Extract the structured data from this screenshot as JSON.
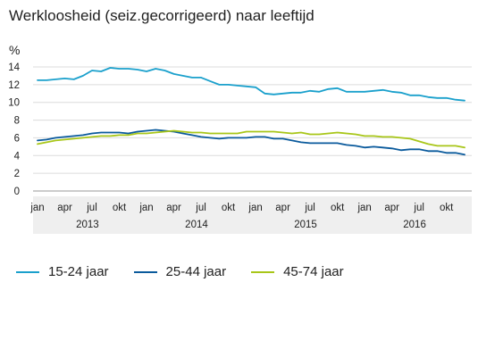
{
  "title": "Werkloosheid (seiz.gecorrigeerd) naar leeftijd",
  "chart_data": {
    "type": "line",
    "title": "Werkloosheid (seiz.gecorrigeerd) naar leeftijd",
    "ylabel": "%",
    "ylim": [
      0,
      14
    ],
    "yticks": [
      0,
      2,
      4,
      6,
      8,
      10,
      12,
      14
    ],
    "grid": true,
    "legend_position": "bottom",
    "x_tick_labels": [
      "jan",
      "apr",
      "jul",
      "okt",
      "jan",
      "apr",
      "jul",
      "okt",
      "jan",
      "apr",
      "jul",
      "okt",
      "jan",
      "apr",
      "jul",
      "okt"
    ],
    "x_tick_positions": [
      0,
      3,
      6,
      9,
      12,
      15,
      18,
      21,
      24,
      27,
      30,
      33,
      36,
      39,
      42,
      45
    ],
    "years": [
      {
        "label": "2013",
        "center": 5.5
      },
      {
        "label": "2014",
        "center": 17.5
      },
      {
        "label": "2015",
        "center": 29.5
      },
      {
        "label": "2016",
        "center": 41.5
      }
    ],
    "series": [
      {
        "name": "15-24 jaar",
        "color": "#1aa0cc",
        "values": [
          12.5,
          12.5,
          12.6,
          12.7,
          12.6,
          13.0,
          13.6,
          13.5,
          13.9,
          13.8,
          13.8,
          13.7,
          13.5,
          13.8,
          13.6,
          13.2,
          13.0,
          12.8,
          12.8,
          12.4,
          12.0,
          12.0,
          11.9,
          11.8,
          11.7,
          11.0,
          10.9,
          11.0,
          11.1,
          11.1,
          11.3,
          11.2,
          11.5,
          11.6,
          11.2,
          11.2,
          11.2,
          11.3,
          11.4,
          11.2,
          11.1,
          10.8,
          10.8,
          10.6,
          10.5,
          10.5,
          10.3,
          10.2
        ]
      },
      {
        "name": "25-44 jaar",
        "color": "#0a5a9c",
        "values": [
          5.7,
          5.8,
          6.0,
          6.1,
          6.2,
          6.3,
          6.5,
          6.6,
          6.6,
          6.6,
          6.5,
          6.7,
          6.8,
          6.9,
          6.8,
          6.7,
          6.5,
          6.3,
          6.1,
          6.0,
          5.9,
          6.0,
          6.0,
          6.0,
          6.1,
          6.1,
          5.9,
          5.9,
          5.7,
          5.5,
          5.4,
          5.4,
          5.4,
          5.4,
          5.2,
          5.1,
          4.9,
          5.0,
          4.9,
          4.8,
          4.6,
          4.7,
          4.7,
          4.5,
          4.5,
          4.3,
          4.3,
          4.1
        ]
      },
      {
        "name": "45-74 jaar",
        "color": "#a8c618",
        "values": [
          5.3,
          5.5,
          5.7,
          5.8,
          5.9,
          6.0,
          6.1,
          6.2,
          6.2,
          6.3,
          6.3,
          6.5,
          6.5,
          6.6,
          6.7,
          6.8,
          6.7,
          6.6,
          6.6,
          6.5,
          6.5,
          6.5,
          6.5,
          6.7,
          6.7,
          6.7,
          6.7,
          6.6,
          6.5,
          6.6,
          6.4,
          6.4,
          6.5,
          6.6,
          6.5,
          6.4,
          6.2,
          6.2,
          6.1,
          6.1,
          6.0,
          5.9,
          5.6,
          5.3,
          5.1,
          5.1,
          5.1,
          4.9
        ]
      }
    ]
  }
}
